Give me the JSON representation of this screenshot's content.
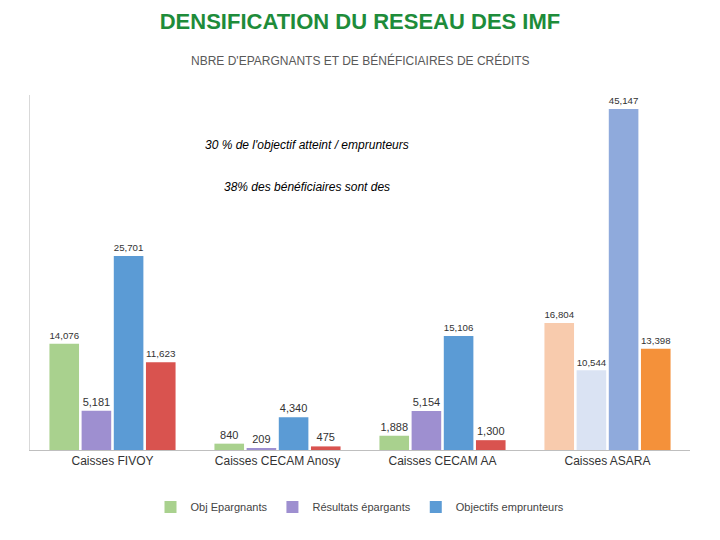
{
  "chart_data": {
    "type": "bar",
    "title": "DENSIFICATION DU RESEAU DES IMF",
    "subtitle": "NBRE D'EPARGNANTS ET DE BÉNÉFICIAIRES DE CRÉDITS",
    "categories": [
      "Caisses FIVOY",
      "Caisses CECAM Anosy",
      "Caisses CECAM AA",
      "Caisses ASARA"
    ],
    "series": [
      {
        "name": "Obj Epargnants",
        "color": "#a9d18e",
        "colors": [
          "#a9d18e",
          "#a9d18e",
          "#a9d18e",
          "#f8cbad"
        ],
        "values": [
          14076,
          840,
          1888,
          16804
        ],
        "value_labels": [
          "14,076",
          "840",
          "1,888",
          "16,804"
        ]
      },
      {
        "name": "Résultats épargants",
        "color": "#9e8fd0",
        "colors": [
          "#9e8fd0",
          "#9e8fd0",
          "#9e8fd0",
          "#dae3f3"
        ],
        "values": [
          5181,
          209,
          5154,
          10544
        ],
        "value_labels": [
          "5,181",
          "209",
          "5,154",
          "10,544"
        ]
      },
      {
        "name": "Objectifs emprunteurs",
        "color": "#5b9bd5",
        "colors": [
          "#5b9bd5",
          "#5b9bd5",
          "#5b9bd5",
          "#8faadc"
        ],
        "values": [
          25701,
          4340,
          15106,
          45147
        ],
        "value_labels": [
          "25,701",
          "4,340",
          "15,106",
          "45,147"
        ]
      },
      {
        "color": "#d9534f",
        "colors": [
          "#d9534f",
          "#d9534f",
          "#d9534f",
          "#f4913a"
        ],
        "values": [
          11623,
          475,
          1300,
          13398
        ],
        "value_labels": [
          "11,623",
          "475",
          "1,300",
          "13,398"
        ]
      }
    ],
    "annotations": [
      "30 % de l'objectif atteint / emprunteurs",
      "38% des bénéficiaires sont des"
    ],
    "ylim": [
      0,
      47000
    ],
    "yticks": [],
    "tick_labels": "x",
    "grid": false,
    "data_labels": true,
    "legend": "bottom"
  }
}
